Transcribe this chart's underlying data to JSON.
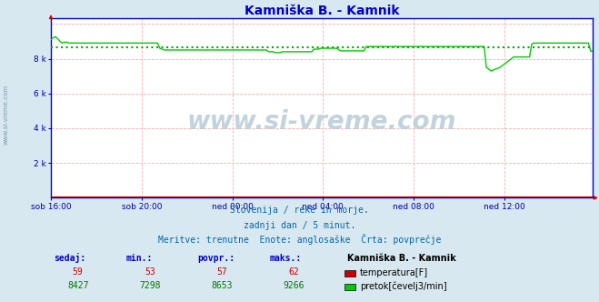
{
  "title": "Kamniška B. - Kamnik",
  "title_color": "#0000cc",
  "bg_color": "#d8e8f0",
  "plot_bg_color": "#ffffff",
  "fig_width": 6.59,
  "fig_height": 3.32,
  "dpi": 100,
  "xlim": [
    0,
    287
  ],
  "ylim": [
    0,
    10333
  ],
  "yticks": [
    2000,
    4000,
    6000,
    8000
  ],
  "ytick_labels": [
    "2 k",
    "4 k",
    "6 k",
    "8 k"
  ],
  "xtick_positions": [
    0,
    48,
    96,
    144,
    192,
    240
  ],
  "xtick_labels": [
    "sob 16:00",
    "sob 20:00",
    "ned 00:00",
    "ned 04:00",
    "ned 08:00",
    "ned 12:00"
  ],
  "grid_color": "#ffaaaa",
  "axis_color": "#0000cc",
  "watermark": "www.si-vreme.com",
  "footer_lines": [
    "Slovenija / reke in morje.",
    "zadnji dan / 5 minut.",
    "Meritve: trenutne  Enote: anglosaške  Črta: povprečje"
  ],
  "legend_title": "Kamniška B. - Kamnik",
  "legend_items": [
    {
      "label": "temperatura[F]",
      "color": "#cc0000"
    },
    {
      "label": "pretok[čevelj3/min]",
      "color": "#00cc00"
    }
  ],
  "stats": {
    "temp": {
      "sedaj": 59,
      "min": 53,
      "povpr": 57,
      "maks": 62
    },
    "flow": {
      "sedaj": 8427,
      "min": 7298,
      "povpr": 8653,
      "maks": 9266
    }
  },
  "flow_avg": 8653,
  "flow_color": "#00cc00",
  "temp_color": "#cc0000",
  "avg_color": "#00aa00",
  "flow_data": [
    9100,
    9200,
    9266,
    9150,
    9000,
    8900,
    8950,
    8950,
    8900,
    8900,
    8900,
    8900,
    8900,
    8900,
    8900,
    8900,
    8900,
    8900,
    8900,
    8900,
    8900,
    8900,
    8900,
    8900,
    8900,
    8900,
    8900,
    8900,
    8900,
    8900,
    8900,
    8900,
    8900,
    8900,
    8900,
    8900,
    8900,
    8900,
    8900,
    8900,
    8900,
    8900,
    8900,
    8900,
    8900,
    8900,
    8900,
    8900,
    8600,
    8550,
    8500,
    8500,
    8500,
    8500,
    8500,
    8500,
    8500,
    8500,
    8500,
    8500,
    8500,
    8500,
    8500,
    8500,
    8500,
    8500,
    8500,
    8500,
    8500,
    8500,
    8500,
    8500,
    8500,
    8500,
    8500,
    8500,
    8500,
    8500,
    8500,
    8500,
    8500,
    8500,
    8500,
    8500,
    8500,
    8500,
    8500,
    8500,
    8500,
    8500,
    8500,
    8500,
    8500,
    8500,
    8500,
    8500,
    8400,
    8400,
    8400,
    8350,
    8350,
    8350,
    8400,
    8400,
    8400,
    8400,
    8400,
    8400,
    8400,
    8400,
    8400,
    8400,
    8400,
    8400,
    8400,
    8400,
    8550,
    8550,
    8550,
    8600,
    8600,
    8600,
    8600,
    8600,
    8600,
    8600,
    8600,
    8500,
    8450,
    8450,
    8450,
    8450,
    8450,
    8450,
    8450,
    8450,
    8450,
    8450,
    8450,
    8700,
    8700,
    8700,
    8700,
    8700,
    8700,
    8700,
    8700,
    8700,
    8700,
    8700,
    8700,
    8700,
    8700,
    8700,
    8700,
    8700,
    8700,
    8700,
    8700,
    8700,
    8700,
    8700,
    8700,
    8700,
    8700,
    8700,
    8700,
    8700,
    8700,
    8700,
    8700,
    8700,
    8700,
    8700,
    8700,
    8700,
    8700,
    8700,
    8700,
    8700,
    8700,
    8700,
    8700,
    8700,
    8700,
    8700,
    8700,
    8700,
    8700,
    8700,
    8700,
    8700,
    7500,
    7400,
    7298,
    7350,
    7400,
    7450,
    7500,
    7600,
    7700,
    7800,
    7900,
    8000,
    8100,
    8100,
    8100,
    8100,
    8100,
    8100,
    8100,
    8100,
    8850,
    8900,
    8900,
    8900,
    8900,
    8900,
    8900,
    8900,
    8900,
    8900,
    8900,
    8900,
    8900,
    8900,
    8900,
    8900,
    8900,
    8900,
    8900,
    8900,
    8900,
    8900,
    8900,
    8900,
    8900,
    8900,
    8427,
    8427
  ],
  "temp_data_flat": 59
}
